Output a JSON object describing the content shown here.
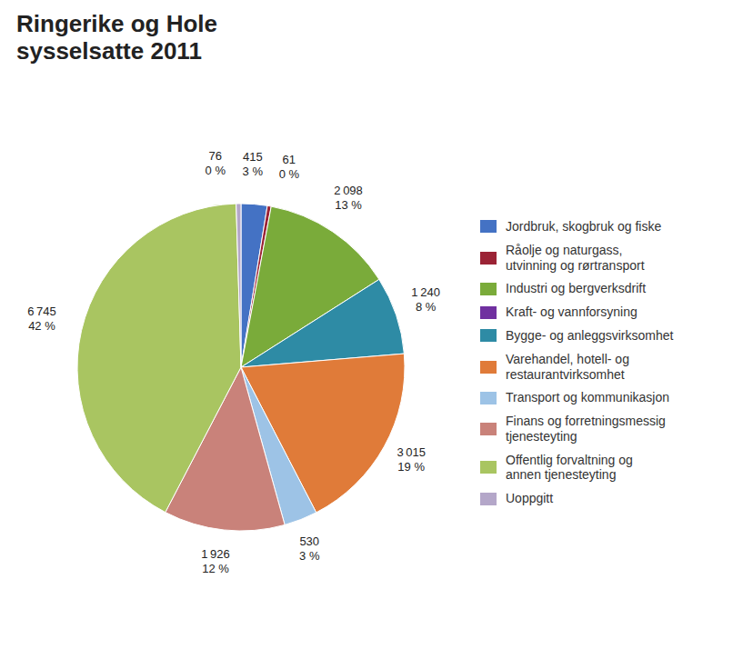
{
  "chart_data": {
    "type": "pie",
    "title": "Ringerike og Hole\nsysselsatte 2011",
    "categories": [
      "Jordbruk, skogbruk og fiske",
      "Råolje og naturgass,\nutvinning og rørtransport",
      "Industri og bergverksdrift",
      "Kraft- og vannforsyning",
      "Bygge- og anleggsvirksomhet",
      "Varehandel, hotell- og\nrestaurantvirksomhet",
      "Transport og kommunikasjon",
      "Finans og forretningsmessig\ntjenesteyting",
      "Offentlig forvaltning og\nannen tjenesteyting",
      "Uoppgitt"
    ],
    "values": [
      415,
      61,
      2098,
      0,
      1240,
      3015,
      530,
      1926,
      6745,
      76
    ],
    "value_labels": [
      "415",
      "61",
      "2 098",
      null,
      "1 240",
      "3 015",
      "530",
      "1 926",
      "6 745",
      "76"
    ],
    "percentages": [
      3,
      0,
      13,
      null,
      8,
      19,
      3,
      12,
      42,
      0
    ],
    "percentage_labels": [
      "3 %",
      "0 %",
      "13 %",
      null,
      "8 %",
      "19 %",
      "3 %",
      "12 %",
      "42 %",
      "0 %"
    ],
    "colors": [
      "#4472C4",
      "#9B2335",
      "#7AAB3A",
      "#7030A0",
      "#2E8BA5",
      "#E07B39",
      "#9DC3E6",
      "#C9827A",
      "#A9C561",
      "#B4A7C9"
    ],
    "data_labels": true,
    "legend": "right"
  }
}
